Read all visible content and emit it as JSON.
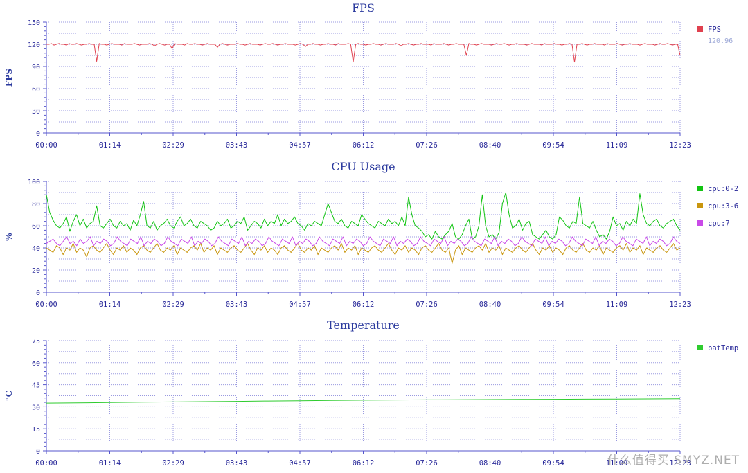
{
  "x_ticks": [
    "00:00",
    "01:14",
    "02:29",
    "03:43",
    "04:57",
    "06:12",
    "07:26",
    "08:40",
    "09:54",
    "11:09",
    "12:23"
  ],
  "watermark": "什么值得买 SMYZ.NET",
  "chart_data": [
    {
      "type": "line",
      "title": "FPS",
      "ylabel": "FPS",
      "ylim": [
        0,
        150
      ],
      "yticks": [
        0,
        30,
        60,
        90,
        120,
        150
      ],
      "xlim": [
        "00:00",
        "12:23"
      ],
      "grid": true,
      "legend_position": "right",
      "series": [
        {
          "name": "FPS",
          "legend_value": "120.96",
          "color": "#e0414f",
          "values": [
            120,
            120,
            121,
            119,
            120,
            121,
            120,
            120,
            119,
            121,
            120,
            120,
            121,
            120,
            119,
            120,
            120,
            121,
            120,
            120,
            97,
            121,
            120,
            120,
            119,
            120,
            121,
            120,
            120,
            120,
            119,
            121,
            120,
            120,
            120,
            121,
            120,
            119,
            120,
            120,
            120,
            121,
            120,
            118,
            120,
            121,
            120,
            119,
            120,
            120,
            114,
            121,
            120,
            120,
            120,
            119,
            121,
            120,
            120,
            121,
            120,
            120,
            119,
            120,
            121,
            120,
            120,
            120,
            116,
            120,
            121,
            120,
            119,
            120,
            120,
            120,
            121,
            120,
            120,
            119,
            120,
            121,
            120,
            120,
            120,
            119,
            120,
            121,
            120,
            120,
            121,
            120,
            119,
            120,
            120,
            121,
            120,
            120,
            120,
            119,
            120,
            121,
            120,
            117,
            120,
            120,
            121,
            120,
            120,
            119,
            120,
            120,
            121,
            120,
            120,
            119,
            121,
            120,
            120,
            120,
            121,
            120,
            96,
            120,
            121,
            120,
            120,
            119,
            120,
            120,
            121,
            120,
            120,
            119,
            120,
            121,
            120,
            120,
            120,
            121,
            120,
            118,
            120,
            120,
            121,
            120,
            119,
            120,
            120,
            121,
            120,
            120,
            120,
            119,
            121,
            120,
            120,
            120,
            121,
            120,
            119,
            120,
            120,
            121,
            120,
            120,
            120,
            105,
            121,
            120,
            120,
            119,
            120,
            121,
            120,
            120,
            120,
            119,
            120,
            121,
            120,
            120,
            121,
            120,
            119,
            120,
            120,
            121,
            120,
            120,
            120,
            119,
            120,
            121,
            120,
            120,
            120,
            119,
            121,
            120,
            120,
            120,
            121,
            120,
            120,
            119,
            120,
            120,
            121,
            120,
            96,
            120,
            120,
            121,
            120,
            119,
            120,
            120,
            121,
            120,
            120,
            120,
            119,
            121,
            120,
            120,
            120,
            121,
            120,
            119,
            120,
            120,
            121,
            120,
            120,
            120,
            119,
            120,
            121,
            120,
            120,
            120,
            119,
            120,
            121,
            120,
            120,
            121,
            120,
            119,
            120,
            120,
            105
          ]
        }
      ]
    },
    {
      "type": "line",
      "title": "CPU Usage",
      "ylabel": "%",
      "ylim": [
        0,
        100
      ],
      "yticks": [
        0,
        20,
        40,
        60,
        80,
        100
      ],
      "xlim": [
        "00:00",
        "12:23"
      ],
      "grid": true,
      "legend_position": "right",
      "series": [
        {
          "name": "cpu:0-2",
          "color": "#12c412",
          "values": [
            88,
            72,
            65,
            60,
            58,
            62,
            68,
            55,
            64,
            70,
            60,
            66,
            58,
            62,
            64,
            78,
            60,
            58,
            62,
            66,
            60,
            58,
            64,
            60,
            62,
            56,
            65,
            60,
            70,
            82,
            60,
            58,
            64,
            56,
            60,
            62,
            66,
            60,
            58,
            64,
            68,
            60,
            62,
            66,
            60,
            58,
            64,
            62,
            60,
            56,
            58,
            64,
            60,
            62,
            66,
            58,
            60,
            64,
            62,
            68,
            56,
            60,
            64,
            62,
            58,
            66,
            60,
            64,
            62,
            70,
            60,
            66,
            62,
            64,
            68,
            62,
            60,
            56,
            62,
            60,
            64,
            62,
            60,
            70,
            80,
            72,
            64,
            62,
            66,
            60,
            58,
            64,
            62,
            60,
            70,
            66,
            62,
            60,
            58,
            64,
            62,
            60,
            66,
            62,
            64,
            60,
            68,
            60,
            86,
            70,
            60,
            58,
            55,
            50,
            52,
            48,
            55,
            50,
            48,
            52,
            55,
            62,
            50,
            48,
            52,
            60,
            66,
            48,
            50,
            60,
            88,
            60,
            50,
            52,
            48,
            54,
            80,
            90,
            70,
            58,
            60,
            66,
            56,
            62,
            64,
            52,
            50,
            48,
            52,
            56,
            50,
            48,
            52,
            68,
            65,
            60,
            58,
            64,
            62,
            86,
            62,
            60,
            58,
            64,
            56,
            50,
            52,
            48,
            55,
            68,
            60,
            62,
            56,
            64,
            60,
            66,
            62,
            89,
            70,
            62,
            60,
            64,
            66,
            60,
            58,
            62,
            64,
            66,
            60,
            56
          ]
        },
        {
          "name": "cpu:3-6",
          "color": "#c9960e",
          "values": [
            40,
            38,
            36,
            42,
            40,
            34,
            40,
            38,
            44,
            36,
            40,
            38,
            32,
            40,
            42,
            38,
            36,
            40,
            44,
            38,
            34,
            40,
            38,
            42,
            36,
            40,
            38,
            34,
            40,
            42,
            38,
            36,
            40,
            44,
            38,
            36,
            40,
            38,
            42,
            34,
            40,
            38,
            36,
            40,
            42,
            38,
            44,
            36,
            40,
            38,
            42,
            34,
            40,
            38,
            36,
            40,
            42,
            38,
            36,
            40,
            44,
            38,
            34,
            40,
            38,
            42,
            36,
            40,
            38,
            34,
            40,
            42,
            38,
            36,
            40,
            44,
            38,
            36,
            40,
            38,
            42,
            34,
            40,
            38,
            36,
            40,
            42,
            38,
            44,
            36,
            40,
            38,
            42,
            34,
            40,
            38,
            36,
            40,
            42,
            38,
            36,
            40,
            44,
            38,
            34,
            40,
            38,
            42,
            36,
            40,
            38,
            34,
            40,
            42,
            38,
            36,
            40,
            44,
            38,
            36,
            40,
            26,
            38,
            42,
            34,
            40,
            38,
            36,
            40,
            42,
            38,
            44,
            36,
            40,
            38,
            42,
            34,
            40,
            38,
            36,
            40,
            42,
            38,
            36,
            40,
            44,
            38,
            34,
            40,
            38,
            42,
            36,
            40,
            38,
            34,
            40,
            42,
            38,
            36,
            40,
            44,
            38,
            36,
            40,
            38,
            42,
            34,
            40,
            38,
            36,
            40,
            42,
            38,
            44,
            36,
            40,
            38,
            42,
            34,
            40,
            38,
            36,
            40,
            42,
            38,
            36,
            40,
            44,
            38,
            40
          ]
        },
        {
          "name": "cpu:7",
          "color": "#c94ae8",
          "values": [
            44,
            46,
            48,
            44,
            42,
            46,
            50,
            44,
            46,
            42,
            48,
            44,
            46,
            50,
            42,
            46,
            44,
            48,
            46,
            42,
            44,
            50,
            46,
            44,
            42,
            48,
            46,
            44,
            50,
            42,
            46,
            44,
            48,
            46,
            42,
            44,
            50,
            46,
            44,
            42,
            48,
            46,
            44,
            50,
            42,
            46,
            44,
            48,
            46,
            42,
            44,
            50,
            46,
            44,
            42,
            48,
            46,
            44,
            50,
            42,
            46,
            44,
            48,
            46,
            42,
            44,
            50,
            46,
            44,
            42,
            48,
            46,
            44,
            50,
            42,
            46,
            44,
            48,
            46,
            42,
            44,
            50,
            46,
            44,
            42,
            48,
            46,
            44,
            50,
            42,
            46,
            44,
            48,
            46,
            42,
            44,
            50,
            46,
            44,
            42,
            48,
            46,
            44,
            50,
            42,
            46,
            44,
            48,
            46,
            42,
            44,
            50,
            46,
            44,
            42,
            48,
            46,
            44,
            50,
            42,
            46,
            44,
            48,
            46,
            42,
            44,
            50,
            46,
            44,
            42,
            48,
            46,
            44,
            50,
            42,
            46,
            44,
            48,
            46,
            42,
            44,
            50,
            46,
            44,
            42,
            48,
            46,
            44,
            50,
            42,
            46,
            44,
            48,
            46,
            42,
            44,
            50,
            46,
            44,
            42,
            48,
            46,
            44,
            50,
            42,
            46,
            44,
            48,
            46,
            42,
            44,
            50,
            46,
            44,
            42,
            48,
            46,
            44,
            50,
            42,
            46,
            44,
            48,
            46,
            42,
            44,
            50,
            46,
            44
          ]
        }
      ]
    },
    {
      "type": "line",
      "title": "Temperature",
      "ylabel": "°C",
      "ylim": [
        0,
        75
      ],
      "yticks": [
        0,
        15,
        30,
        45,
        60,
        75
      ],
      "xlim": [
        "00:00",
        "12:23"
      ],
      "grid": true,
      "legend_position": "right",
      "series": [
        {
          "name": "batTemp",
          "color": "#2fcc2f",
          "values": [
            32.5,
            32.7,
            32.9,
            33.1,
            33.3,
            33.5,
            33.7,
            33.9,
            34.1,
            34.3,
            34.5,
            34.6,
            34.7,
            34.8,
            34.9,
            35.0,
            35.1,
            35.2,
            35.3,
            35.4,
            35.5
          ]
        }
      ]
    }
  ]
}
